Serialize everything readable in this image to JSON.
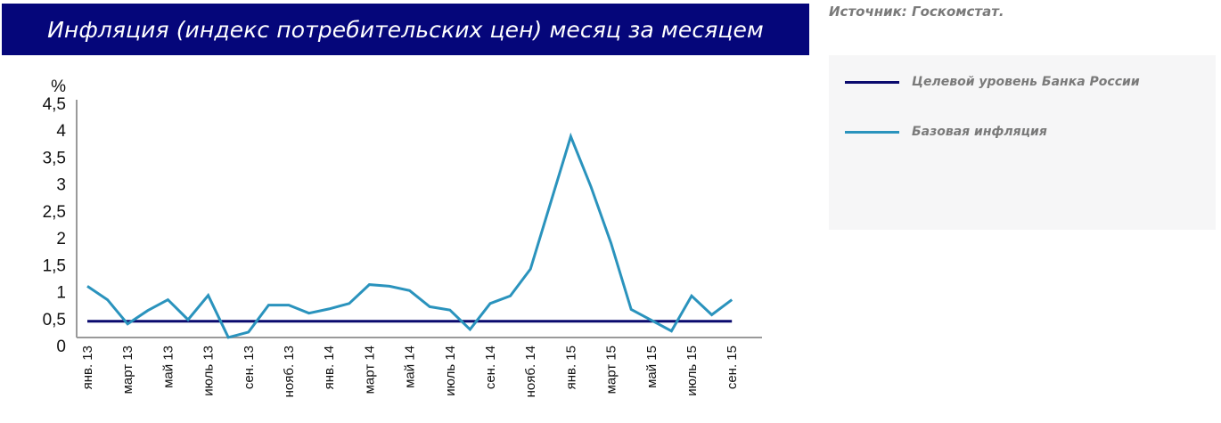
{
  "header": {
    "title": "Инфляция (индекс потребительских цен) месяц за месяцем",
    "source": "Источник: Госкомстат."
  },
  "legend": {
    "items": [
      {
        "label": "Целевой уровень Банка России",
        "color": "#0a0a6e"
      },
      {
        "label": "Базовая инфляция",
        "color": "#2a93bd"
      }
    ]
  },
  "colors": {
    "title_bg": "#05067a",
    "target_line": "#0a0a6e",
    "core_line": "#2a93bd",
    "axis": "#9a9a9a"
  },
  "chart_data": {
    "type": "line",
    "title": "Инфляция (индекс потребительских цен) месяц за месяцем",
    "xlabel": "",
    "ylabel": "%",
    "ylim": [
      0,
      4.5
    ],
    "yticks": [
      "0",
      "0,5",
      "1",
      "1,5",
      "2",
      "2,5",
      "3",
      "3,5",
      "4",
      "4,5"
    ],
    "grid": false,
    "legend_position": "right",
    "x": [
      "янв. 13",
      "фев. 13",
      "март 13",
      "апр. 13",
      "май 13",
      "июнь 13",
      "июль 13",
      "авг. 13",
      "сен. 13",
      "окт. 13",
      "нояб. 13",
      "дек. 13",
      "янв. 14",
      "фев. 14",
      "март 14",
      "апр. 14",
      "май 14",
      "июнь 14",
      "июль 14",
      "авг. 14",
      "сен. 14",
      "окт. 14",
      "нояб. 14",
      "дек. 14",
      "янв. 15",
      "фев. 15",
      "март 15",
      "апр. 15",
      "май 15",
      "июнь 15",
      "июль 15",
      "авг. 15",
      "сен. 15"
    ],
    "xtick_labels": [
      "янв. 13",
      "март 13",
      "май 13",
      "июль 13",
      "сен. 13",
      "нояб. 13",
      "янв. 14",
      "март 14",
      "май 14",
      "июль 14",
      "сен. 14",
      "нояб. 14",
      "янв. 15",
      "март 15",
      "май 15",
      "июль 15",
      "сен. 15"
    ],
    "series": [
      {
        "name": "Целевой уровень Банка России",
        "values": [
          0.45,
          0.45,
          0.45,
          0.45,
          0.45,
          0.45,
          0.45,
          0.45,
          0.45,
          0.45,
          0.45,
          0.45,
          0.45,
          0.45,
          0.45,
          0.45,
          0.45,
          0.45,
          0.45,
          0.45,
          0.45,
          0.45,
          0.45,
          0.45,
          0.45,
          0.45,
          0.45,
          0.45,
          0.45,
          0.45,
          0.45,
          0.45,
          0.45
        ]
      },
      {
        "name": "Базовая инфляция",
        "values": [
          1.1,
          0.85,
          0.4,
          0.65,
          0.85,
          0.48,
          0.93,
          0.15,
          0.25,
          0.75,
          0.75,
          0.6,
          0.68,
          0.78,
          1.13,
          1.1,
          1.02,
          0.72,
          0.66,
          0.3,
          0.78,
          0.92,
          1.42,
          2.65,
          3.88,
          2.95,
          1.9,
          0.67,
          0.47,
          0.27,
          0.92,
          0.57,
          0.85
        ]
      }
    ]
  }
}
